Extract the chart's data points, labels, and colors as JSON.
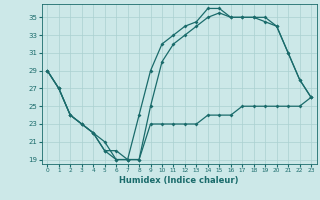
{
  "xlabel": "Humidex (Indice chaleur)",
  "bg_color": "#cce8e8",
  "grid_color": "#aad0d0",
  "line_color": "#1a6b6b",
  "xlim": [
    -0.5,
    23.5
  ],
  "ylim": [
    18.5,
    36.5
  ],
  "yticks": [
    19,
    21,
    23,
    25,
    27,
    29,
    31,
    33,
    35
  ],
  "xticks": [
    0,
    1,
    2,
    3,
    4,
    5,
    6,
    7,
    8,
    9,
    10,
    11,
    12,
    13,
    14,
    15,
    16,
    17,
    18,
    19,
    20,
    21,
    22,
    23
  ],
  "line_max": [
    29,
    27,
    24,
    23,
    22,
    20,
    19,
    19,
    24,
    29,
    32,
    33,
    34,
    34.5,
    36,
    36,
    35,
    35,
    35,
    35,
    34,
    31,
    28,
    26
  ],
  "line_mid": [
    29,
    27,
    24,
    23,
    22,
    20,
    20,
    19,
    19,
    25,
    30,
    32,
    33,
    34,
    35,
    35.5,
    35,
    35,
    35,
    34.5,
    34,
    31,
    28,
    26
  ],
  "line_min": [
    29,
    27,
    24,
    23,
    22,
    21,
    19,
    19,
    19,
    23,
    23,
    23,
    23,
    23,
    24,
    24,
    24,
    25,
    25,
    25,
    25,
    25,
    25,
    26
  ]
}
